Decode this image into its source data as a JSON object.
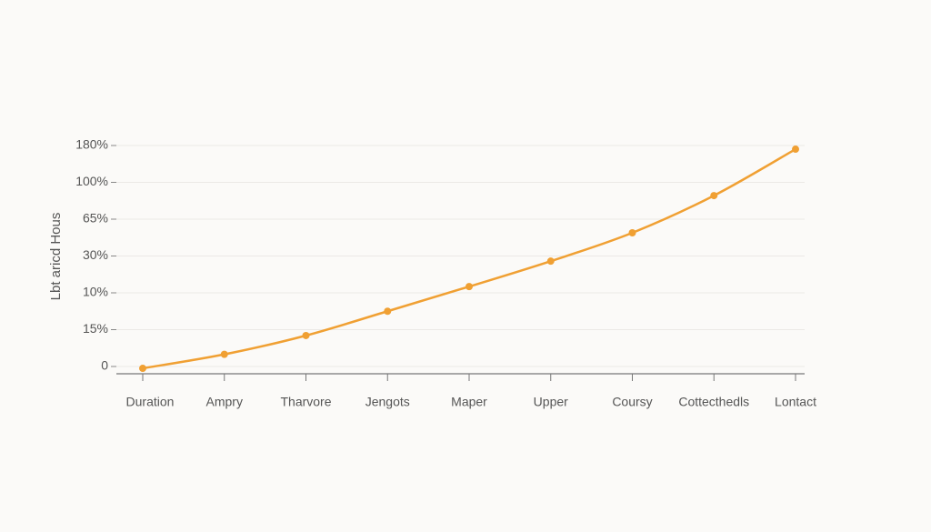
{
  "chart_data": {
    "type": "line",
    "y_axis_label": "Lbt aricd Hous",
    "categories": [
      "Duration",
      "Ampry",
      "Tharvore",
      "Jengots",
      "Maper",
      "Upper",
      "Coursy",
      "Cottecthedls",
      "Lontact"
    ],
    "ylim": [
      0,
      6
    ],
    "y_labels": [
      "0",
      "15%",
      "10%",
      "30%",
      "65%",
      "100%",
      "180%"
    ],
    "values": [
      -0.05,
      0.33,
      0.84,
      1.5,
      2.17,
      2.86,
      3.63,
      4.64,
      5.9
    ],
    "color": "#f0a033",
    "grid": true
  }
}
